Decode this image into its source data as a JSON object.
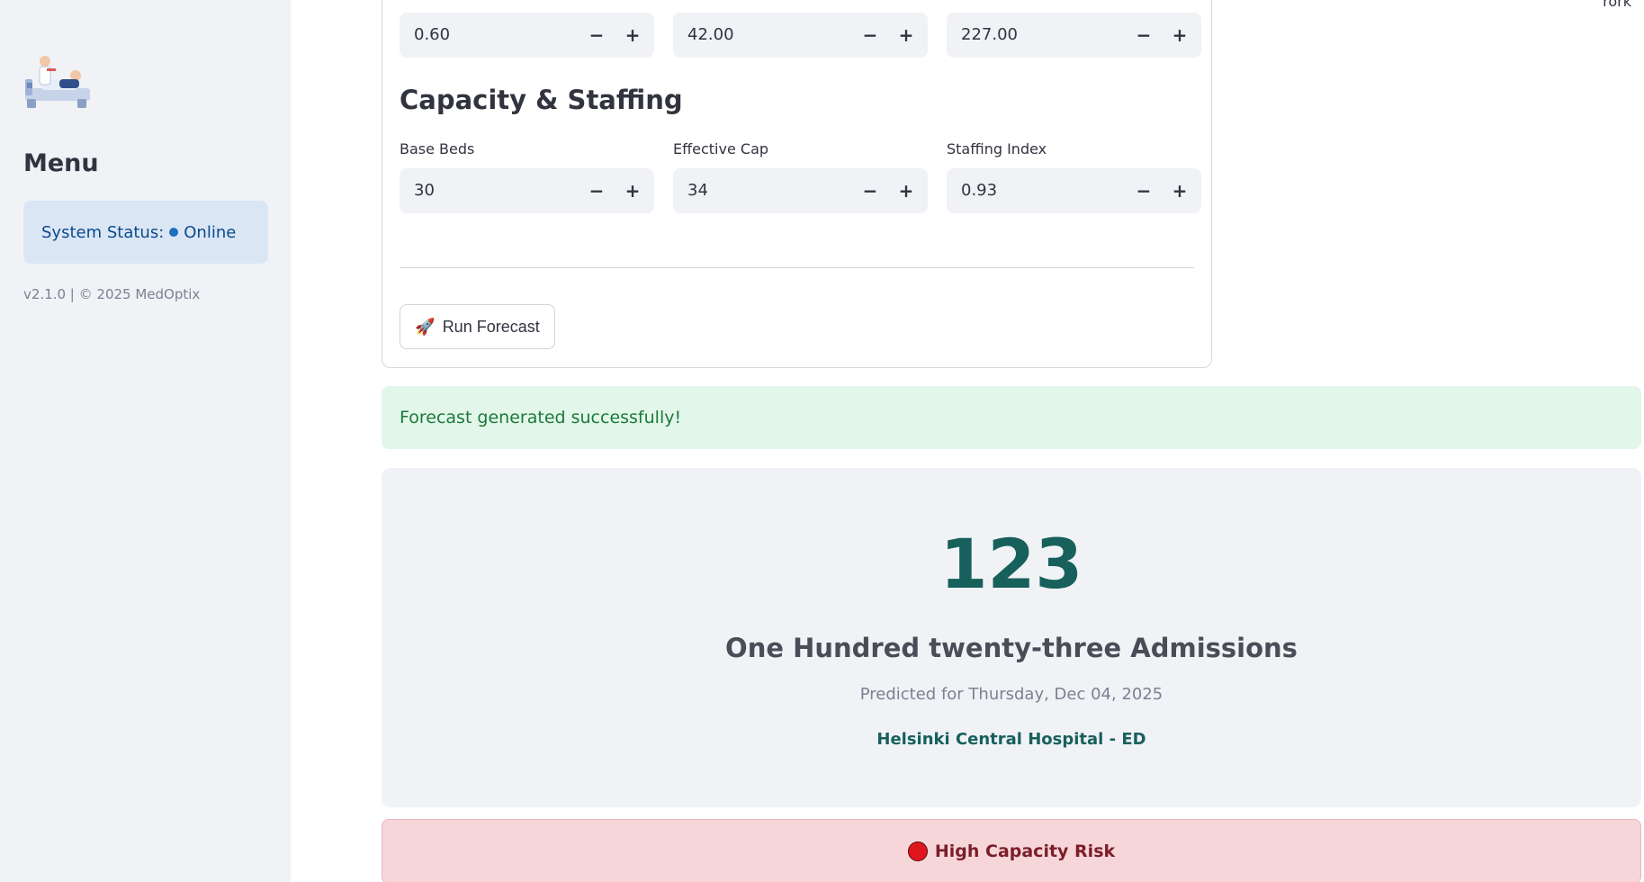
{
  "header": {
    "top_right_text": "rork"
  },
  "sidebar": {
    "menu_title": "Menu",
    "status": {
      "label": "System Status:",
      "value": "Online"
    },
    "version": "v2.1.0 | © 2025 MedOptix"
  },
  "top_row": [
    {
      "value": "0.60"
    },
    {
      "value": "42.00"
    },
    {
      "value": "227.00"
    }
  ],
  "capacity": {
    "title": "Capacity & Staffing",
    "fields": [
      {
        "label": "Base Beds",
        "value": "30"
      },
      {
        "label": "Effective Cap",
        "value": "34"
      },
      {
        "label": "Staffing Index",
        "value": "0.93"
      }
    ]
  },
  "stepper": {
    "minus": "−",
    "plus": "+"
  },
  "run_button": {
    "icon": "🚀",
    "label": "Run Forecast"
  },
  "success_message": "Forecast generated successfully!",
  "result": {
    "number": "123",
    "words": "One Hundred twenty-three Admissions",
    "predicted_for": "Predicted for Thursday, Dec 04, 2025",
    "hospital": "Helsinki Central Hospital - ED"
  },
  "risk": {
    "label": "High Capacity Risk"
  },
  "colors": {
    "accent_teal": "#17605c",
    "success_bg": "#e3f6ea",
    "risk_bg": "#f7d6da",
    "status_bg": "#dbe6f5"
  }
}
